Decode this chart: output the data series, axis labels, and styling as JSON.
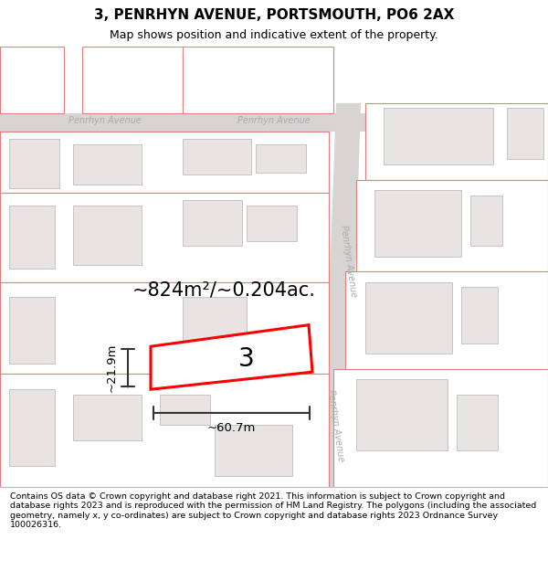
{
  "title": "3, PENRHYN AVENUE, PORTSMOUTH, PO6 2AX",
  "subtitle": "Map shows position and indicative extent of the property.",
  "footer": "Contains OS data © Crown copyright and database right 2021. This information is subject to Crown copyright and database rights 2023 and is reproduced with the permission of HM Land Registry. The polygons (including the associated geometry, namely x, y co-ordinates) are subject to Crown copyright and database rights 2023 Ordnance Survey 100026316.",
  "property_number": "3",
  "area_label": "~824m²/~0.204ac.",
  "width_label": "~60.7m",
  "height_label": "~21.9m",
  "block_fill": "#e8e4e4",
  "block_outline": "#e08080",
  "road_fill": "#d8d4d4",
  "road_label_color": "#aaaaaa",
  "highlight_color": "#ff0000",
  "dim_color": "#333333",
  "title_fontsize": 11,
  "subtitle_fontsize": 9,
  "footer_fontsize": 6.8
}
